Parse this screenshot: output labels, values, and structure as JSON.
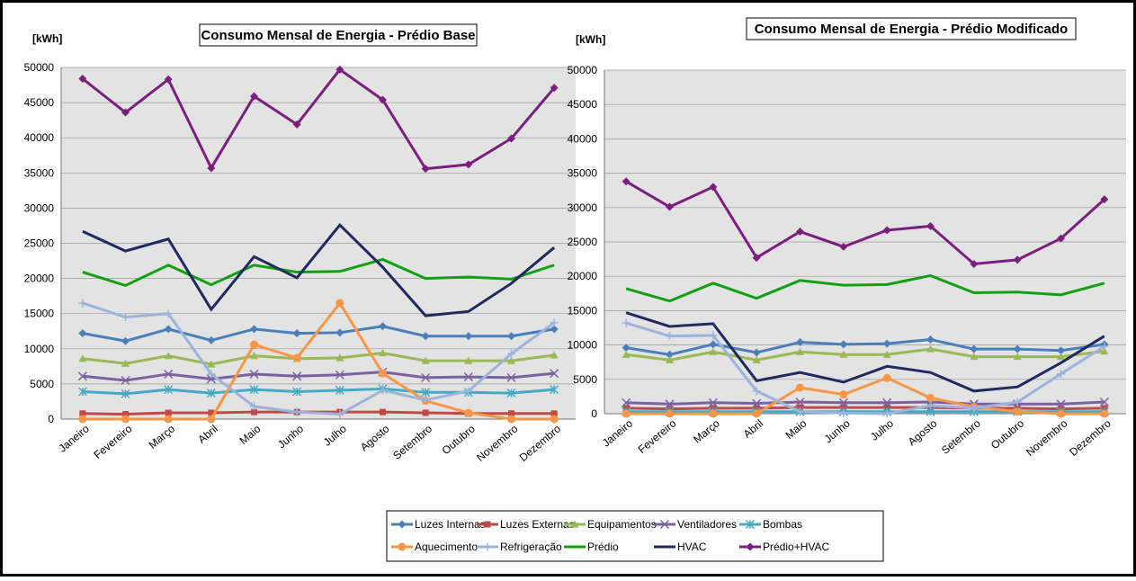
{
  "chart_data": [
    {
      "type": "line",
      "title": "Consumo Mensal de Energia - Prédio Base",
      "y_label": "[kWh]",
      "categories": [
        "Janeiro",
        "Fevereiro",
        "Março",
        "Abril",
        "Maio",
        "Junho",
        "Julho",
        "Agosto",
        "Setembro",
        "Outubro",
        "Novembro",
        "Dezembro"
      ],
      "ylim": [
        0,
        50000
      ],
      "yticks": [
        0,
        5000,
        10000,
        15000,
        20000,
        25000,
        30000,
        35000,
        40000,
        45000,
        50000
      ],
      "grid": true,
      "series": [
        {
          "name": "Luzes Internas",
          "color": "#4a7ebb",
          "marker": "diamond",
          "values": [
            12200,
            11100,
            12800,
            11200,
            12800,
            12200,
            12300,
            13200,
            11800,
            11800,
            11800,
            12800
          ]
        },
        {
          "name": "Luzes Externas",
          "color": "#be4b48",
          "marker": "square",
          "values": [
            800,
            700,
            900,
            900,
            1000,
            1000,
            1000,
            1000,
            900,
            800,
            800,
            800
          ]
        },
        {
          "name": "Equipamentos",
          "color": "#98b954",
          "marker": "triangle",
          "values": [
            8600,
            7900,
            9000,
            7800,
            9000,
            8600,
            8700,
            9400,
            8300,
            8300,
            8300,
            9100
          ]
        },
        {
          "name": "Ventiladores",
          "color": "#7d60a0",
          "marker": "x",
          "values": [
            6100,
            5500,
            6400,
            5700,
            6400,
            6100,
            6300,
            6700,
            5900,
            6000,
            5900,
            6500
          ]
        },
        {
          "name": "Bombas",
          "color": "#46aac5",
          "marker": "star",
          "values": [
            3900,
            3600,
            4200,
            3700,
            4200,
            3900,
            4100,
            4300,
            3800,
            3800,
            3700,
            4200
          ]
        },
        {
          "name": "Aquecimento",
          "color": "#f79646",
          "marker": "circle",
          "values": [
            0,
            0,
            0,
            0,
            10600,
            8700,
            16500,
            6500,
            2600,
            900,
            0,
            0
          ]
        },
        {
          "name": "Refrigeração",
          "color": "#9cb4dc",
          "marker": "plus",
          "values": [
            16500,
            14500,
            15000,
            6400,
            1800,
            1000,
            700,
            4100,
            2700,
            4000,
            9300,
            13700
          ]
        },
        {
          "name": "Prédio",
          "color": "#11a011",
          "marker": "none",
          "values": [
            20900,
            19000,
            21900,
            19100,
            21900,
            20900,
            21000,
            22700,
            20000,
            20200,
            19900,
            21900
          ]
        },
        {
          "name": "HVAC",
          "color": "#1f2a60",
          "marker": "none",
          "values": [
            26700,
            23900,
            25600,
            15600,
            23100,
            20100,
            27600,
            21600,
            14700,
            15300,
            19300,
            24400
          ]
        },
        {
          "name": "Prédio+HVAC",
          "color": "#7b1f7e",
          "marker": "diamond",
          "values": [
            48400,
            43600,
            48300,
            35700,
            45900,
            41900,
            49700,
            45400,
            35600,
            36200,
            39900,
            47100
          ]
        }
      ]
    },
    {
      "type": "line",
      "title": "Consumo Mensal de Energia - Prédio Modificado",
      "y_label": "[kWh]",
      "categories": [
        "Janeiro",
        "Fevereiro",
        "Março",
        "Abril",
        "Maio",
        "Junho",
        "Julho",
        "Agosto",
        "Setembro",
        "Outubro",
        "Novembro",
        "Dezembro"
      ],
      "ylim": [
        0,
        50000
      ],
      "yticks": [
        0,
        5000,
        10000,
        15000,
        20000,
        25000,
        30000,
        35000,
        40000,
        45000,
        50000
      ],
      "grid": true,
      "series": [
        {
          "name": "Luzes Internas",
          "color": "#4a7ebb",
          "marker": "diamond",
          "values": [
            9600,
            8600,
            10100,
            8900,
            10400,
            10100,
            10200,
            10800,
            9400,
            9400,
            9200,
            10100
          ]
        },
        {
          "name": "Luzes Externas",
          "color": "#be4b48",
          "marker": "square",
          "values": [
            800,
            700,
            800,
            800,
            900,
            900,
            900,
            900,
            800,
            800,
            700,
            800
          ]
        },
        {
          "name": "Equipamentos",
          "color": "#98b954",
          "marker": "triangle",
          "values": [
            8600,
            7800,
            9000,
            7800,
            9000,
            8600,
            8600,
            9400,
            8300,
            8300,
            8300,
            9100
          ]
        },
        {
          "name": "Ventiladores",
          "color": "#7d60a0",
          "marker": "x",
          "values": [
            1600,
            1400,
            1600,
            1500,
            1700,
            1600,
            1600,
            1700,
            1400,
            1400,
            1400,
            1700
          ]
        },
        {
          "name": "Bombas",
          "color": "#46aac5",
          "marker": "star",
          "values": [
            300,
            300,
            300,
            300,
            300,
            300,
            300,
            300,
            300,
            300,
            300,
            300
          ]
        },
        {
          "name": "Aquecimento",
          "color": "#f79646",
          "marker": "circle",
          "values": [
            0,
            0,
            0,
            0,
            3800,
            2800,
            5200,
            2300,
            1000,
            300,
            0,
            0
          ]
        },
        {
          "name": "Refrigeração",
          "color": "#9cb4dc",
          "marker": "plus",
          "values": [
            13200,
            11300,
            11400,
            3300,
            300,
            100,
            0,
            1200,
            800,
            1700,
            5800,
            9800
          ]
        },
        {
          "name": "Prédio",
          "color": "#11a011",
          "marker": "none",
          "values": [
            18200,
            16400,
            19000,
            16800,
            19400,
            18700,
            18800,
            20100,
            17600,
            17700,
            17300,
            19000
          ]
        },
        {
          "name": "HVAC",
          "color": "#1f2a60",
          "marker": "none",
          "values": [
            14700,
            12700,
            13100,
            4800,
            6000,
            4600,
            6900,
            6000,
            3300,
            3900,
            7400,
            11300
          ]
        },
        {
          "name": "Prédio+HVAC",
          "color": "#7b1f7e",
          "marker": "diamond",
          "values": [
            33800,
            30100,
            33000,
            22700,
            26500,
            24300,
            26700,
            27300,
            21800,
            22400,
            25500,
            31200
          ]
        }
      ]
    }
  ]
}
